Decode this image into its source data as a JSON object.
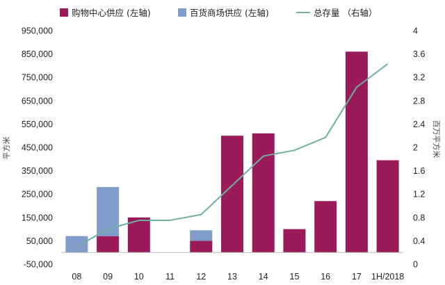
{
  "chart_data": {
    "type": "bar",
    "categories": [
      "08",
      "09",
      "10",
      "11",
      "12",
      "13",
      "14",
      "15",
      "16",
      "17",
      "1H/2018"
    ],
    "series": [
      {
        "name": "购物中心供应 (左轴)",
        "kind": "bar",
        "axis": "left",
        "color": "#9B1B5A",
        "values": [
          0,
          70000,
          150000,
          0,
          50000,
          500000,
          510000,
          100000,
          220000,
          860000,
          395000
        ]
      },
      {
        "name": "百货商场供应 (左轴)",
        "kind": "bar",
        "axis": "left",
        "color": "#7F9CCB",
        "values": [
          70000,
          210000,
          0,
          0,
          45000,
          0,
          0,
          0,
          0,
          0,
          0
        ]
      },
      {
        "name": "总存量 （右轴）",
        "kind": "line",
        "axis": "right",
        "color": "#6FAFA3",
        "values": [
          0.3,
          0.6,
          0.75,
          0.75,
          0.85,
          1.35,
          1.85,
          1.95,
          2.17,
          3.03,
          3.43
        ]
      }
    ],
    "stacked": true,
    "ylim_left": [
      -50000,
      950000
    ],
    "yticks_left": [
      "950,000",
      "850,000",
      "750,000",
      "650,000",
      "550,000",
      "450,000",
      "350,000",
      "250,000",
      "150,000",
      "50,000",
      "-50,000"
    ],
    "ylabel_left": "平方米",
    "ylim_right": [
      0,
      4
    ],
    "yticks_right": [
      "4",
      "3.6",
      "3.2",
      "2.8",
      "2.4",
      "2",
      "1.6",
      "1.2",
      "0.8",
      "0.4",
      "0"
    ],
    "ylabel_right": "百万平方米",
    "legend_position": "top",
    "grid": false
  }
}
